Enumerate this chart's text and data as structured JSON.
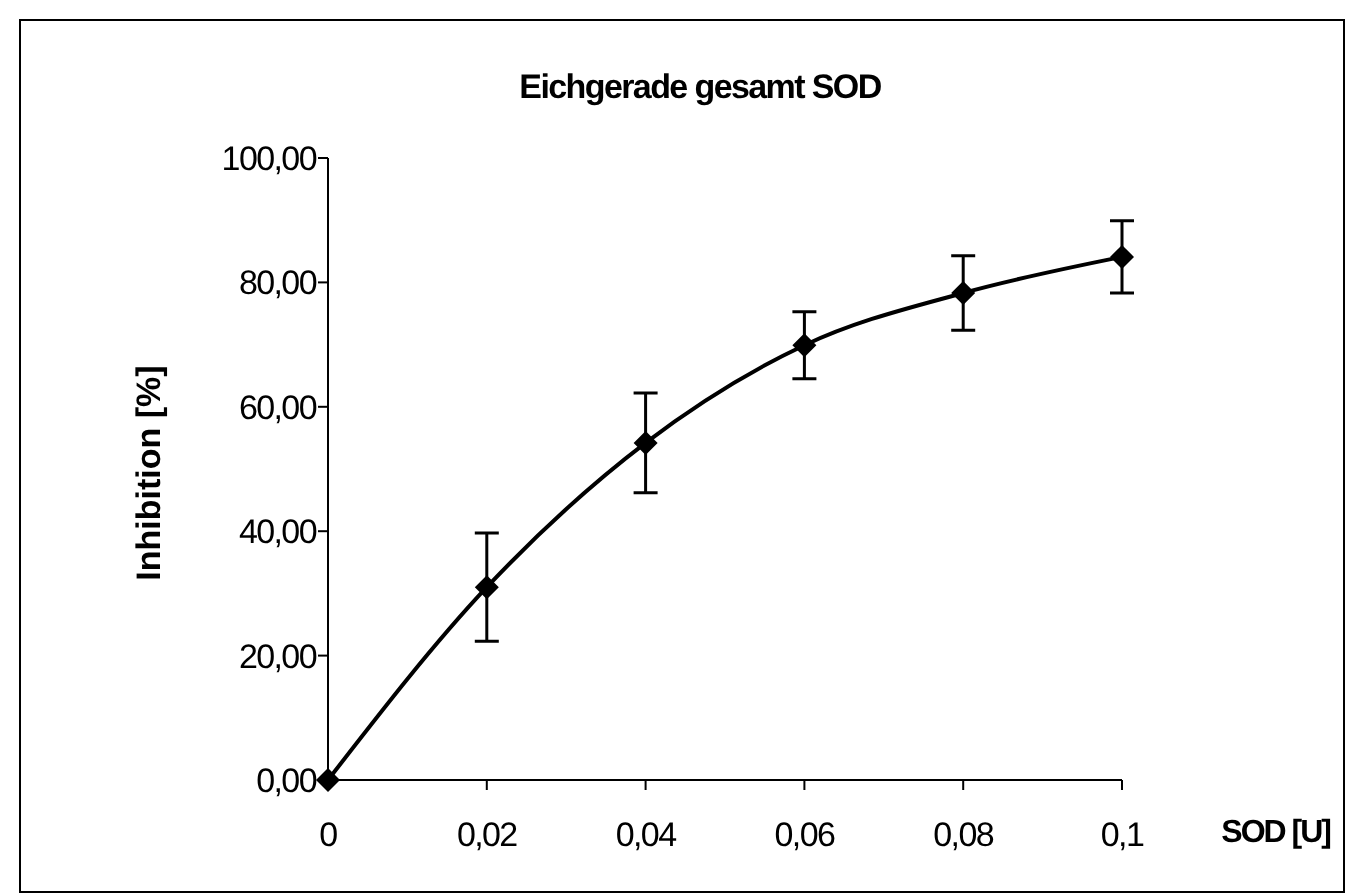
{
  "chart_data": {
    "type": "line",
    "title": "Eichgerade gesamt SOD",
    "xlabel": "SOD [U]",
    "ylabel": "Inhibition [%]",
    "x": [
      0,
      0.02,
      0.04,
      0.06,
      0.08,
      0.1
    ],
    "series": [
      {
        "color": "#000000",
        "values": [
          0,
          31,
          54.2,
          69.9,
          78.3,
          84.1
        ],
        "errors": [
          null,
          8.7,
          8,
          5.4,
          6,
          5.8
        ]
      }
    ],
    "xlim": [
      0,
      0.1
    ],
    "xticks": [
      0,
      {
        "value": 0.02,
        "label": "0,02"
      },
      {
        "value": 0.04,
        "label": "0,04"
      },
      {
        "value": 0.06,
        "label": "0,06"
      },
      {
        "value": 0.08,
        "label": "0,08"
      },
      {
        "value": 0.1,
        "label": "0,1"
      }
    ],
    "ylim": [
      0,
      100
    ],
    "yticks": [
      {
        "value": 0,
        "label": "0,00"
      },
      {
        "value": 20,
        "label": "20,00"
      },
      {
        "value": 40,
        "label": "40,00"
      },
      {
        "value": 60,
        "label": "60,00"
      },
      {
        "value": 80,
        "label": "80,00"
      },
      {
        "value": 100,
        "label": "100,00"
      }
    ],
    "marker": "diamond"
  }
}
